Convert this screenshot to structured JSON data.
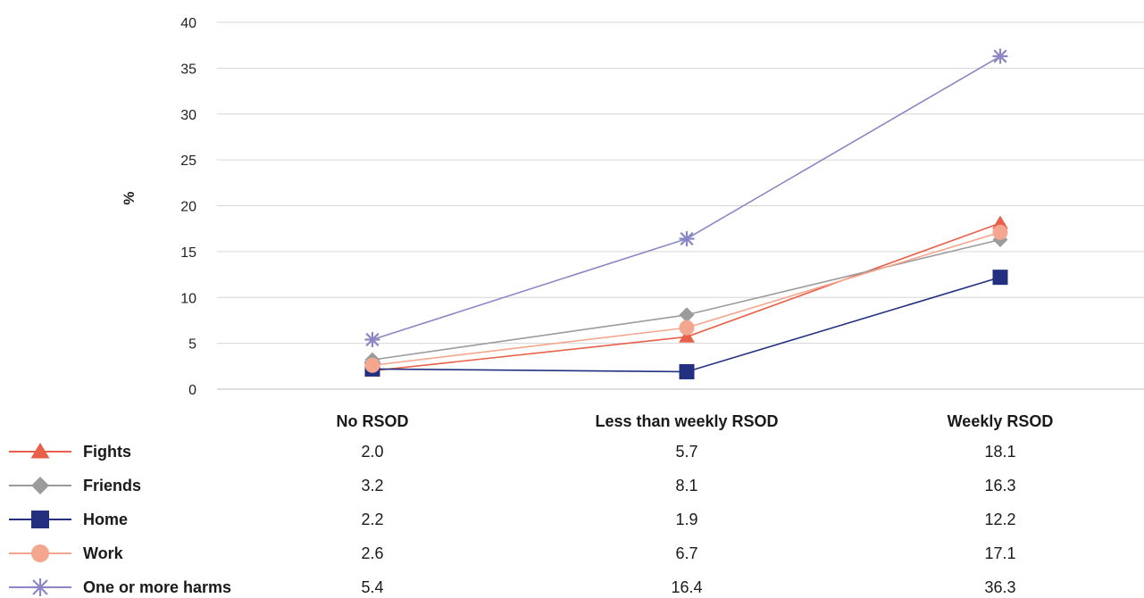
{
  "chart_data": {
    "type": "line",
    "title": "",
    "xlabel": "",
    "ylabel": "%",
    "ylim": [
      0,
      40
    ],
    "yticks": [
      0,
      5,
      10,
      15,
      20,
      25,
      30,
      35,
      40
    ],
    "grid": true,
    "legend": "data-table-below",
    "categories": [
      "No RSOD",
      "Less than weekly RSOD",
      "Weekly RSOD"
    ],
    "series": [
      {
        "name": "Fights",
        "values": [
          2.0,
          5.7,
          18.1
        ],
        "labels": [
          "2.0",
          "5.7",
          "18.1"
        ],
        "color": "#e8604a",
        "marker": "triangle"
      },
      {
        "name": "Friends",
        "values": [
          3.2,
          8.1,
          16.3
        ],
        "labels": [
          "3.2",
          "8.1",
          "16.3"
        ],
        "color": "#9b9b9b",
        "marker": "diamond"
      },
      {
        "name": "Home",
        "values": [
          2.2,
          1.9,
          12.2
        ],
        "labels": [
          "2.2",
          "1.9",
          "12.2"
        ],
        "color": "#23307f",
        "marker": "square"
      },
      {
        "name": "Work",
        "values": [
          2.6,
          6.7,
          17.1
        ],
        "labels": [
          "2.6",
          "6.7",
          "17.1"
        ],
        "color": "#f4a68f",
        "marker": "circle"
      },
      {
        "name": "One or more harms",
        "values": [
          5.4,
          16.4,
          36.3
        ],
        "labels": [
          "5.4",
          "16.4",
          "36.3"
        ],
        "color": "#8a87c4",
        "marker": "asterisk"
      }
    ]
  }
}
